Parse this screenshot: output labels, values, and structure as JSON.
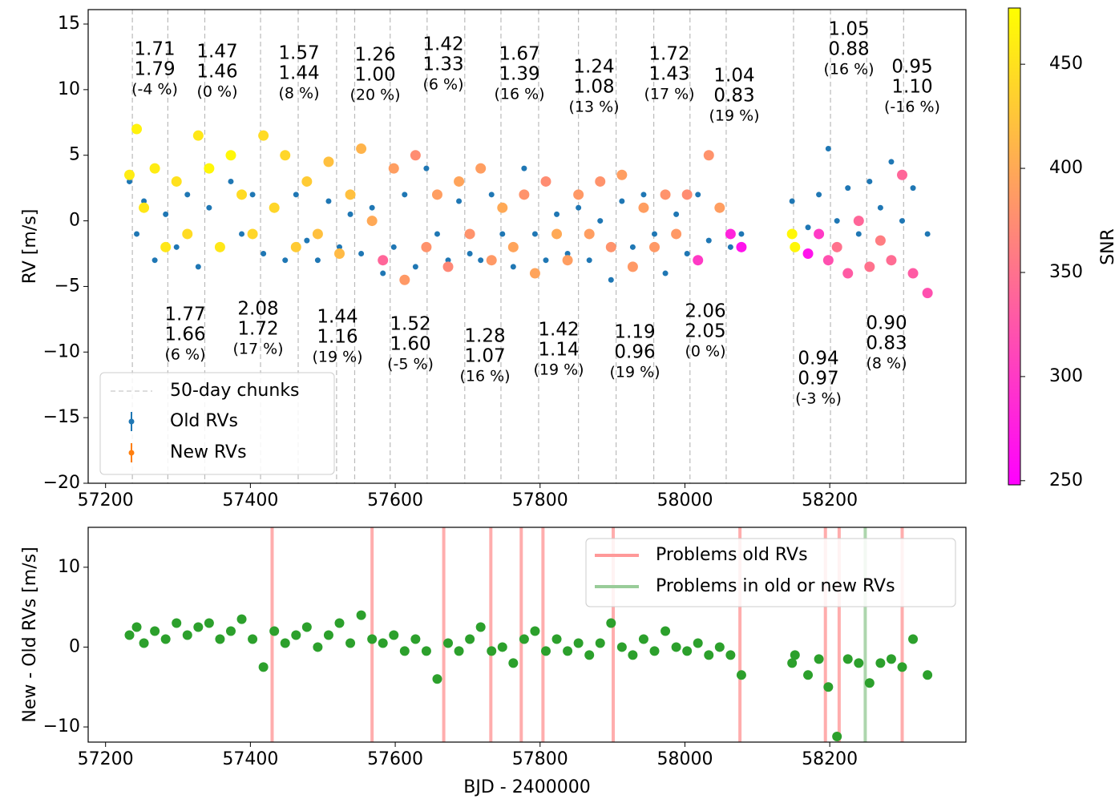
{
  "chart_data": [
    {
      "type": "scatter",
      "ylabel": "RV [m/s]",
      "xlim": [
        57176,
        58388
      ],
      "ylim": [
        -20,
        16.1
      ],
      "xticks": [
        57200,
        57400,
        57600,
        57800,
        58000,
        58200
      ],
      "yticks": [
        {
          "value": -20,
          "label": "−20"
        },
        {
          "value": -15,
          "label": "−15"
        },
        {
          "value": -10,
          "label": "−10"
        },
        {
          "value": -5,
          "label": "−5"
        },
        0,
        5,
        10,
        15
      ],
      "chunks": {
        "name": "50-day chunks",
        "color": "#bbbbbb",
        "x": [
          57237,
          57286,
          57337,
          57414,
          57466,
          57519,
          57544,
          57593,
          57644,
          57696,
          57746,
          57798,
          57853,
          57905,
          57957,
          58007,
          58057,
          58150,
          58201,
          58251,
          58302
        ]
      },
      "series": [
        {
          "name": "Old RVs",
          "color": "#1f77b4",
          "x": [
            57233,
            57243,
            57253,
            57268,
            57283,
            57298,
            57313,
            57328,
            57343,
            57358,
            57373,
            57388,
            57403,
            57418,
            57433,
            57448,
            57463,
            57478,
            57493,
            57508,
            57523,
            57538,
            57553,
            57568,
            57583,
            57598,
            57613,
            57628,
            57643,
            57658,
            57673,
            57688,
            57703,
            57718,
            57733,
            57748,
            57763,
            57778,
            57793,
            57808,
            57823,
            57838,
            57853,
            57868,
            57883,
            57898,
            57913,
            57928,
            57943,
            57958,
            57973,
            57988,
            58003,
            58018,
            58033,
            58048,
            58063,
            58078,
            58148,
            58152,
            58170,
            58185,
            58198,
            58210,
            58225,
            58240,
            58255,
            58270,
            58285,
            58300,
            58315,
            58335
          ],
          "y": [
            3,
            -1,
            1.5,
            -3,
            0.5,
            -2,
            2,
            -3.5,
            1,
            -2,
            3,
            -1,
            2,
            -2.5,
            1,
            -3,
            2,
            -1.5,
            -3,
            1.5,
            -2,
            0.5,
            -2.5,
            1,
            -4,
            -2,
            2,
            -3.5,
            4,
            -1,
            -3,
            1.5,
            -2.5,
            -3,
            2,
            -1,
            -3.5,
            4,
            -1,
            -3,
            0.5,
            -2.5,
            1,
            -3,
            0,
            -4.5,
            1.5,
            -2,
            2,
            -1,
            -4,
            0.5,
            -2.5,
            2,
            -1.5,
            1,
            -2,
            -1,
            1.5,
            -2,
            -0.5,
            2,
            5.5,
            0,
            2.5,
            -1,
            3,
            1,
            4.5,
            0,
            2.5,
            -1
          ]
        },
        {
          "name": "New RVs",
          "color": "#ff7f0e",
          "x": [
            57233,
            57243,
            57253,
            57268,
            57283,
            57298,
            57313,
            57328,
            57343,
            57358,
            57373,
            57388,
            57403,
            57418,
            57433,
            57448,
            57463,
            57478,
            57493,
            57508,
            57523,
            57538,
            57553,
            57568,
            57583,
            57598,
            57613,
            57628,
            57643,
            57658,
            57673,
            57688,
            57703,
            57718,
            57733,
            57748,
            57763,
            57778,
            57793,
            57808,
            57823,
            57838,
            57853,
            57868,
            57883,
            57898,
            57913,
            57928,
            57943,
            57958,
            57973,
            57988,
            58003,
            58018,
            58033,
            58048,
            58063,
            58078,
            58148,
            58152,
            58170,
            58185,
            58198,
            58210,
            58225,
            58240,
            58255,
            58270,
            58285,
            58300,
            58315,
            58335
          ],
          "y": [
            3.5,
            7,
            1,
            4,
            -2,
            3,
            -1,
            6.5,
            4,
            -2,
            5,
            2,
            -1,
            6.5,
            1,
            5,
            -2,
            3,
            -1,
            4.5,
            -2.5,
            2,
            5.5,
            0,
            -3,
            4,
            -4.5,
            5,
            -2,
            2,
            -3.5,
            3,
            -1,
            4,
            -3,
            1,
            -2,
            2,
            -4,
            3,
            -1,
            -3,
            2,
            -1,
            3,
            -2,
            3.5,
            -3.5,
            1,
            -2,
            2,
            -1,
            2,
            -3,
            5,
            1,
            -1,
            -2,
            -1,
            -2,
            -2.5,
            -1,
            -3,
            -2,
            -4,
            0,
            -3.5,
            -1.5,
            -3,
            3.5,
            -4,
            -5.5
          ],
          "snr": [
            460,
            465,
            455,
            460,
            455,
            450,
            445,
            455,
            470,
            455,
            470,
            445,
            440,
            445,
            440,
            440,
            430,
            430,
            420,
            420,
            415,
            420,
            410,
            400,
            340,
            390,
            385,
            375,
            380,
            390,
            370,
            395,
            380,
            390,
            385,
            400,
            395,
            380,
            395,
            375,
            400,
            390,
            385,
            390,
            380,
            380,
            390,
            385,
            390,
            385,
            380,
            385,
            375,
            300,
            380,
            390,
            280,
            265,
            470,
            470,
            265,
            300,
            320,
            350,
            330,
            340,
            350,
            360,
            345,
            340,
            330,
            320
          ]
        }
      ],
      "colorbar": {
        "label": "SNR",
        "lim": [
          248,
          477
        ],
        "ticks": [
          250,
          300,
          350,
          400,
          450
        ],
        "colormap": [
          "#ff00ff",
          "#ffff00"
        ]
      },
      "annotations": [
        {
          "old": "1.71",
          "new": "1.79",
          "pct": "(-4 %)"
        },
        {
          "old": "1.77",
          "new": "1.66",
          "pct": "(6 %)"
        },
        {
          "old": "1.47",
          "new": "1.46",
          "pct": "(0 %)"
        },
        {
          "old": "2.08",
          "new": "1.72",
          "pct": "(17 %)"
        },
        {
          "old": "1.57",
          "new": "1.44",
          "pct": "(8 %)"
        },
        {
          "old": "1.44",
          "new": "1.16",
          "pct": "(19 %)"
        },
        {
          "old": "1.26",
          "new": "1.00",
          "pct": "(20 %)"
        },
        {
          "old": "1.52",
          "new": "1.60",
          "pct": "(-5 %)"
        },
        {
          "old": "1.42",
          "new": "1.33",
          "pct": "(6 %)"
        },
        {
          "old": "1.28",
          "new": "1.07",
          "pct": "(16 %)"
        },
        {
          "old": "1.67",
          "new": "1.39",
          "pct": "(16 %)"
        },
        {
          "old": "1.42",
          "new": "1.14",
          "pct": "(19 %)"
        },
        {
          "old": "1.24",
          "new": "1.08",
          "pct": "(13 %)"
        },
        {
          "old": "1.19",
          "new": "0.96",
          "pct": "(19 %)"
        },
        {
          "old": "1.72",
          "new": "1.43",
          "pct": "(17 %)"
        },
        {
          "old": "2.06",
          "new": "2.05",
          "pct": "(0 %)"
        },
        {
          "old": "1.04",
          "new": "0.83",
          "pct": "(19 %)"
        },
        {
          "old": "0.94",
          "new": "0.97",
          "pct": "(-3 %)"
        },
        {
          "old": "1.05",
          "new": "0.88",
          "pct": "(16 %)"
        },
        {
          "old": "0.90",
          "new": "0.83",
          "pct": "(8 %)"
        },
        {
          "old": "0.95",
          "new": "1.10",
          "pct": "(-16 %)"
        }
      ]
    },
    {
      "type": "scatter",
      "xlabel": "BJD - 2400000",
      "ylabel": "New - Old RVs [m/s]",
      "xlim": [
        57176,
        58388
      ],
      "ylim": [
        -11.9,
        15
      ],
      "xticks": [
        57200,
        57400,
        57600,
        57800,
        58000,
        58200
      ],
      "yticks": [
        {
          "value": -10,
          "label": "−10"
        },
        0,
        10
      ],
      "series": [
        {
          "color": "#2ca02c",
          "x": [
            57233,
            57243,
            57253,
            57268,
            57283,
            57298,
            57313,
            57328,
            57343,
            57358,
            57373,
            57388,
            57403,
            57418,
            57433,
            57448,
            57463,
            57478,
            57493,
            57508,
            57523,
            57538,
            57553,
            57568,
            57583,
            57598,
            57613,
            57628,
            57643,
            57658,
            57673,
            57688,
            57703,
            57718,
            57733,
            57748,
            57763,
            57778,
            57793,
            57808,
            57823,
            57838,
            57853,
            57868,
            57883,
            57898,
            57913,
            57928,
            57943,
            57958,
            57973,
            57988,
            58003,
            58018,
            58033,
            58048,
            58063,
            58078,
            58148,
            58152,
            58170,
            58185,
            58198,
            58210,
            58225,
            58240,
            58255,
            58270,
            58285,
            58300,
            58315,
            58335
          ],
          "y": [
            1.5,
            2.5,
            0.5,
            2,
            1,
            3,
            1.5,
            2.5,
            3,
            1,
            2,
            3.5,
            1,
            -2.5,
            2,
            0.5,
            1.5,
            2.5,
            0,
            1.5,
            3,
            0.5,
            4,
            1,
            0.5,
            1.5,
            -0.5,
            1,
            -0.5,
            -4,
            0.5,
            -0.5,
            1,
            2.5,
            -0.5,
            0,
            -2,
            1,
            2,
            -0.5,
            1,
            -0.5,
            0.5,
            -1,
            0.5,
            3,
            0,
            -1,
            1,
            -0.5,
            2,
            0,
            -0.5,
            0.5,
            -1,
            0,
            -1,
            -3.5,
            -2,
            -1,
            -3.5,
            -1.5,
            -5,
            -11.2,
            -1.5,
            -2,
            -4.5,
            -2,
            -1.5,
            -2.5,
            1,
            -3.5
          ]
        }
      ],
      "vlines": [
        {
          "name": "Problems old RVs",
          "color": "#ff9999",
          "x": [
            57430,
            57568,
            57667,
            57732,
            57774,
            57804,
            57901,
            58076,
            58194,
            58213,
            58300
          ]
        },
        {
          "name": "Problems in old or new RVs",
          "color": "#99cc99",
          "x": [
            58249
          ]
        }
      ]
    }
  ]
}
